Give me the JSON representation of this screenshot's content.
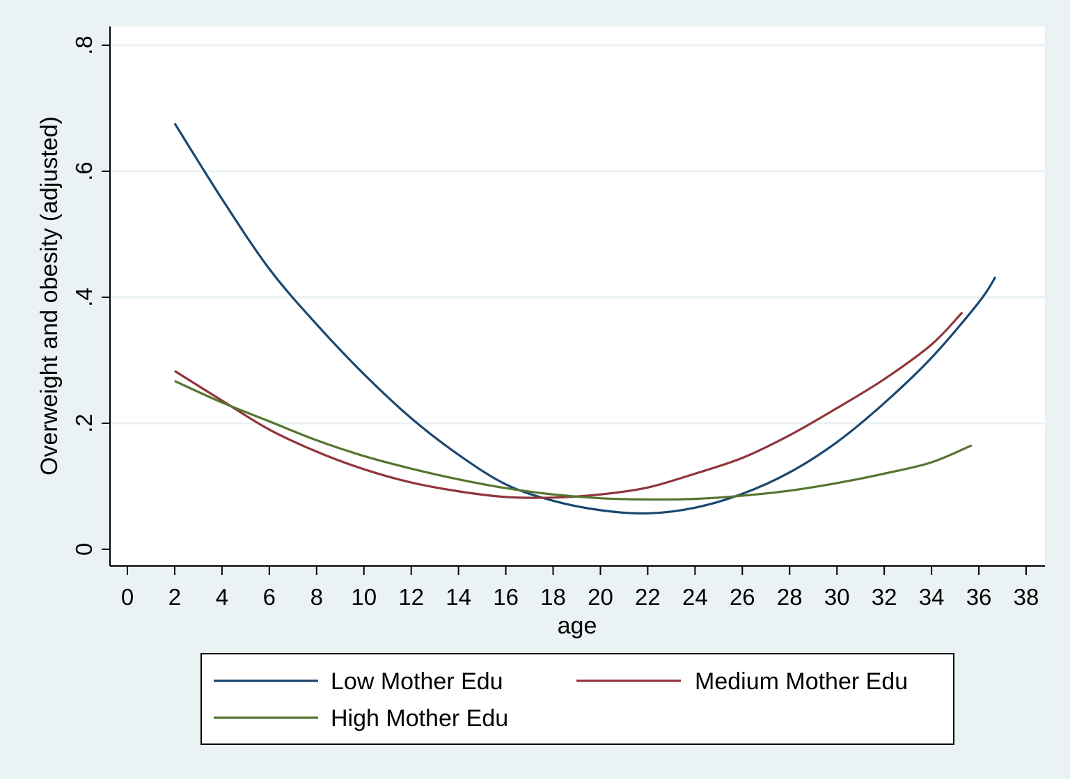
{
  "chart_data": {
    "type": "line",
    "xlabel": "age",
    "ylabel": "Overweight and obesity (adjusted)",
    "xlim": [
      0,
      38
    ],
    "ylim": [
      0,
      0.8
    ],
    "x_ticks": [
      "0",
      "2",
      "4",
      "6",
      "8",
      "10",
      "12",
      "14",
      "16",
      "18",
      "20",
      "22",
      "24",
      "26",
      "28",
      "30",
      "32",
      "34",
      "36",
      "38"
    ],
    "y_ticks": [
      "0",
      ".2",
      ".4",
      ".6",
      ".8"
    ],
    "grid": "horizontal",
    "legend_placement": "bottom",
    "series": [
      {
        "name": "Low Mother Edu",
        "color": "#1a476f",
        "points": [
          [
            2,
            0.676
          ],
          [
            4,
            0.556
          ],
          [
            6,
            0.445
          ],
          [
            8,
            0.357
          ],
          [
            10,
            0.278
          ],
          [
            12,
            0.208
          ],
          [
            14,
            0.15
          ],
          [
            16,
            0.103
          ],
          [
            18,
            0.077
          ],
          [
            20,
            0.062
          ],
          [
            22,
            0.057
          ],
          [
            24,
            0.066
          ],
          [
            26,
            0.088
          ],
          [
            28,
            0.122
          ],
          [
            30,
            0.17
          ],
          [
            32,
            0.232
          ],
          [
            34,
            0.304
          ],
          [
            36,
            0.392
          ],
          [
            36.7,
            0.432
          ]
        ]
      },
      {
        "name": "Medium Mother Edu",
        "color": "#90353b",
        "points": [
          [
            2,
            0.283
          ],
          [
            4,
            0.236
          ],
          [
            6,
            0.19
          ],
          [
            8,
            0.155
          ],
          [
            10,
            0.127
          ],
          [
            12,
            0.106
          ],
          [
            14,
            0.092
          ],
          [
            16,
            0.083
          ],
          [
            18,
            0.082
          ],
          [
            20,
            0.087
          ],
          [
            22,
            0.098
          ],
          [
            24,
            0.12
          ],
          [
            26,
            0.145
          ],
          [
            28,
            0.181
          ],
          [
            30,
            0.224
          ],
          [
            32,
            0.27
          ],
          [
            34,
            0.325
          ],
          [
            35.3,
            0.376
          ]
        ]
      },
      {
        "name": "High Mother Edu",
        "color": "#55752f",
        "points": [
          [
            2,
            0.267
          ],
          [
            4,
            0.233
          ],
          [
            6,
            0.203
          ],
          [
            8,
            0.173
          ],
          [
            10,
            0.148
          ],
          [
            12,
            0.128
          ],
          [
            14,
            0.111
          ],
          [
            16,
            0.097
          ],
          [
            18,
            0.087
          ],
          [
            20,
            0.081
          ],
          [
            22,
            0.079
          ],
          [
            24,
            0.08
          ],
          [
            26,
            0.085
          ],
          [
            28,
            0.093
          ],
          [
            30,
            0.105
          ],
          [
            32,
            0.12
          ],
          [
            34,
            0.138
          ],
          [
            35.7,
            0.165
          ]
        ]
      }
    ]
  }
}
